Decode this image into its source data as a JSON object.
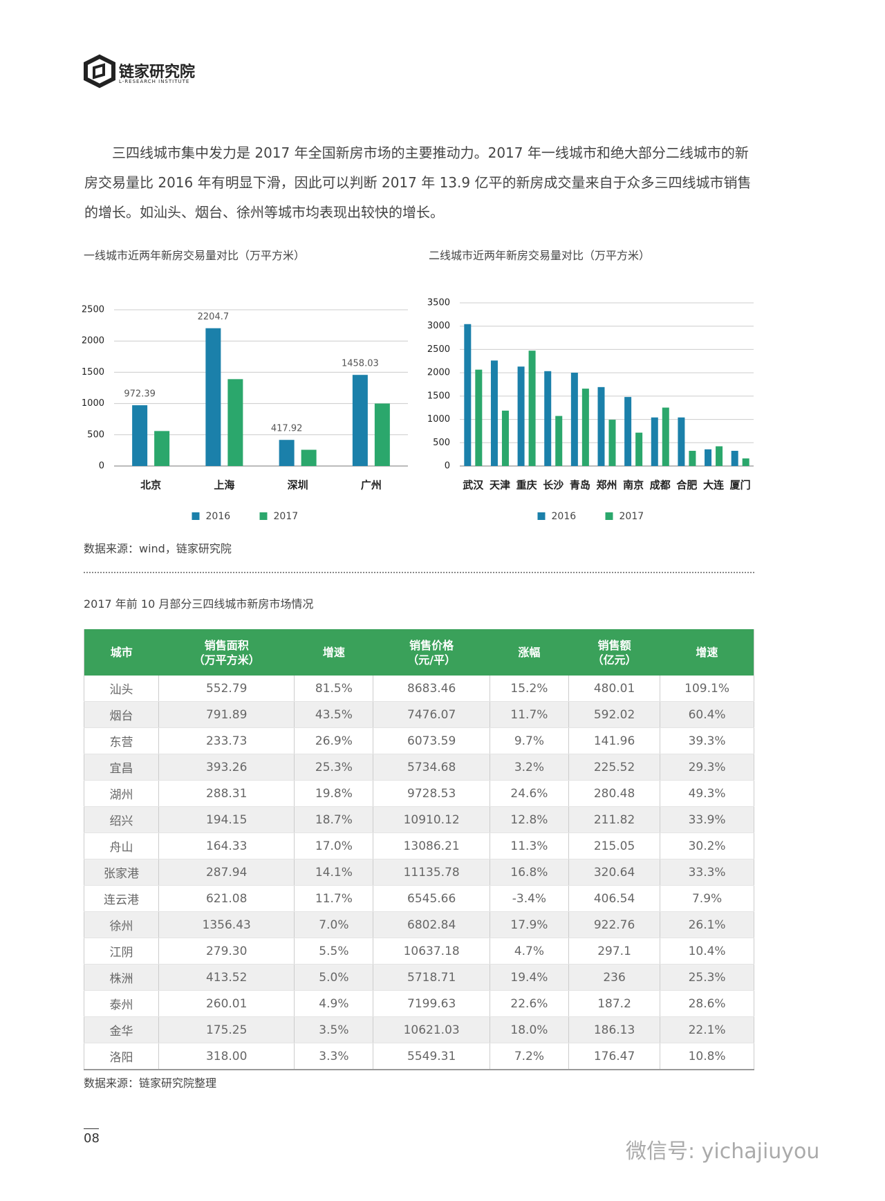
{
  "header": {
    "logo_name": "链家研究院",
    "logo_subtitle": "L-RESEARCH INSTITUTE"
  },
  "paragraph": "三四线城市集中发力是 2017 年全国新房市场的主要推动力。2017 年一线城市和绝大部分二线城市的新房交易量比 2016 年有明显下滑，因此可以判断 2017 年 13.9 亿平的新房成交量来自于众多三四线城市销售的增长。如汕头、烟台、徐州等城市均表现出较快的增长。",
  "chart_data": [
    {
      "type": "bar",
      "title": "一线城市近两年新房交易量对比（万平方米）",
      "categories": [
        "北京",
        "上海",
        "深圳",
        "广州"
      ],
      "series": [
        {
          "name": "2016",
          "color": "#1b80aa",
          "values": [
            972.39,
            2204.7,
            417.92,
            1458.03
          ],
          "show_labels": true
        },
        {
          "name": "2017",
          "color": "#2ba76c",
          "values": [
            560,
            1390,
            260,
            1000
          ],
          "show_labels": false
        }
      ],
      "ylim": [
        0,
        2500
      ],
      "yticks": [
        0,
        500,
        1000,
        1500,
        2000,
        2500
      ],
      "grid": true,
      "legend": "bottom"
    },
    {
      "type": "bar",
      "title": "二线城市近两年新房交易量对比（万平方米）",
      "categories": [
        "武汉",
        "天津",
        "重庆",
        "长沙",
        "青岛",
        "郑州",
        "南京",
        "成都",
        "合肥",
        "大连",
        "厦门"
      ],
      "series": [
        {
          "name": "2016",
          "color": "#1b80aa",
          "values": [
            3044,
            2263,
            2133,
            2035,
            2002,
            1693,
            1481,
            1042,
            1042,
            358,
            326
          ],
          "show_labels": false
        },
        {
          "name": "2017",
          "color": "#2ba76c",
          "values": [
            2067,
            1188,
            2474,
            1074,
            1660,
            993,
            716,
            1253,
            326,
            423,
            163
          ],
          "show_labels": false
        }
      ],
      "ylim": [
        0,
        3500
      ],
      "yticks": [
        0,
        500,
        1000,
        1500,
        2000,
        2500,
        3000,
        3500
      ],
      "grid": true,
      "legend": "bottom"
    }
  ],
  "chart_source": "数据来源：wind，链家研究院",
  "table": {
    "title": "2017 年前 10 月部分三四线城市新房市场情况",
    "columns": [
      "城市",
      "销售面积\n（万平方米）",
      "增速",
      "销售价格\n（元/平）",
      "涨幅",
      "销售额\n（亿元）",
      "增速"
    ],
    "rows": [
      [
        "汕头",
        "552.79",
        "81.5%",
        "8683.46",
        "15.2%",
        "480.01",
        "109.1%"
      ],
      [
        "烟台",
        "791.89",
        "43.5%",
        "7476.07",
        "11.7%",
        "592.02",
        "60.4%"
      ],
      [
        "东营",
        "233.73",
        "26.9%",
        "6073.59",
        "9.7%",
        "141.96",
        "39.3%"
      ],
      [
        "宜昌",
        "393.26",
        "25.3%",
        "5734.68",
        "3.2%",
        "225.52",
        "29.3%"
      ],
      [
        "湖州",
        "288.31",
        "19.8%",
        "9728.53",
        "24.6%",
        "280.48",
        "49.3%"
      ],
      [
        "绍兴",
        "194.15",
        "18.7%",
        "10910.12",
        "12.8%",
        "211.82",
        "33.9%"
      ],
      [
        "舟山",
        "164.33",
        "17.0%",
        "13086.21",
        "11.3%",
        "215.05",
        "30.2%"
      ],
      [
        "张家港",
        "287.94",
        "14.1%",
        "11135.78",
        "16.8%",
        "320.64",
        "33.3%"
      ],
      [
        "连云港",
        "621.08",
        "11.7%",
        "6545.66",
        "-3.4%",
        "406.54",
        "7.9%"
      ],
      [
        "徐州",
        "1356.43",
        "7.0%",
        "6802.84",
        "17.9%",
        "922.76",
        "26.1%"
      ],
      [
        "江阴",
        "279.30",
        "5.5%",
        "10637.18",
        "4.7%",
        "297.1",
        "10.4%"
      ],
      [
        "株洲",
        "413.52",
        "5.0%",
        "5718.71",
        "19.4%",
        "236",
        "25.3%"
      ],
      [
        "泰州",
        "260.01",
        "4.9%",
        "7199.63",
        "22.6%",
        "187.2",
        "28.6%"
      ],
      [
        "金华",
        "175.25",
        "3.5%",
        "10621.03",
        "18.0%",
        "186.13",
        "22.1%"
      ],
      [
        "洛阳",
        "318.00",
        "3.3%",
        "5549.31",
        "7.2%",
        "176.47",
        "10.8%"
      ]
    ]
  },
  "table_source": "数据来源：链家研究院整理",
  "page_number": "08",
  "watermark": "微信号: yichajiuyou"
}
